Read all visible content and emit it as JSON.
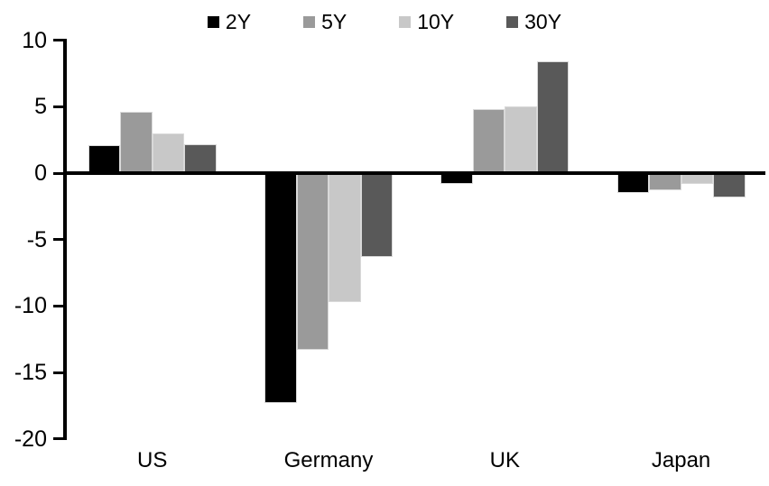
{
  "chart_data": {
    "type": "bar",
    "title": "",
    "categories": [
      "US",
      "Germany",
      "UK",
      "Japan"
    ],
    "series": [
      {
        "name": "2Y",
        "color": "#000000",
        "values": [
          2.1,
          -17.3,
          -0.8,
          -1.5
        ]
      },
      {
        "name": "5Y",
        "color": "#9a9a9a",
        "values": [
          4.6,
          -13.3,
          4.8,
          -1.3
        ]
      },
      {
        "name": "10Y",
        "color": "#c8c8c8",
        "values": [
          3.0,
          -9.7,
          5.0,
          -0.8
        ]
      },
      {
        "name": "30Y",
        "color": "#595959",
        "values": [
          2.2,
          -6.3,
          8.4,
          -1.8
        ]
      }
    ],
    "y_axis": {
      "ticks": [
        10,
        5,
        0,
        -5,
        -10,
        -15,
        -20
      ],
      "tick_labels": [
        "10",
        "5",
        "0",
        "-5",
        "-10",
        "-15",
        "-20"
      ],
      "ylim": [
        -20,
        10
      ]
    },
    "xlabel": "",
    "ylabel": "",
    "legend_position": "top",
    "grid": "off",
    "axis_color": "#000000",
    "background_color": "#ffffff"
  }
}
